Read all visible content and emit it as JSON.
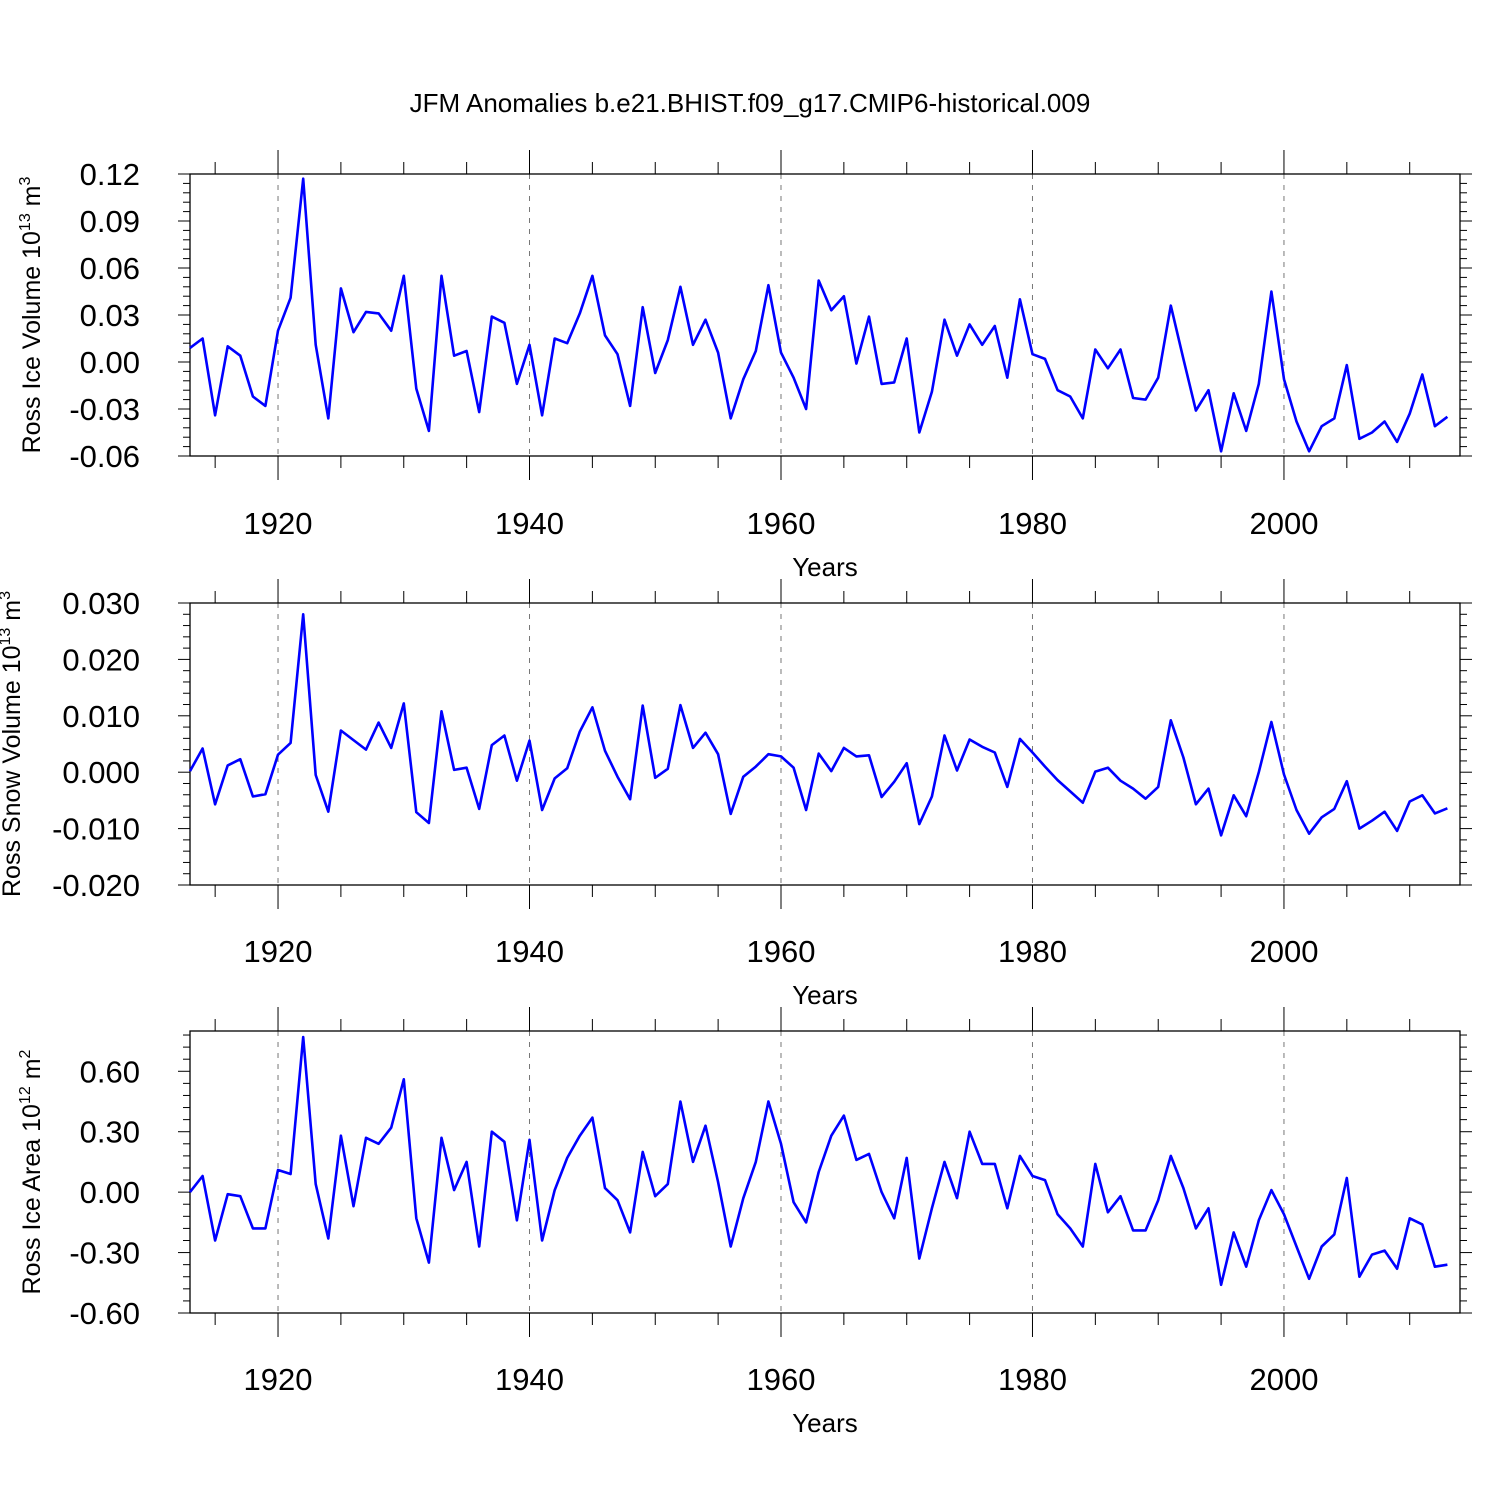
{
  "title": "JFM Anomalies b.e21.BHIST.f09_g17.CMIP6-historical.009",
  "colors": {
    "line": "#0000ff",
    "axis": "#000000",
    "grid": "#777777"
  },
  "chart_data": [
    {
      "type": "line",
      "ylabel": "Ross Ice Volume 10",
      "ylabel_exp": "13",
      "ylabel_unit": " m",
      "ylabel_unit_exp": "3",
      "xlabel": "Years",
      "xlim": [
        1913,
        2014
      ],
      "ylim": [
        -0.06,
        0.12
      ],
      "xticks": [
        1920,
        1940,
        1960,
        1980,
        2000
      ],
      "xtick_labels": [
        "1920",
        "1940",
        "1960",
        "1980",
        "2000"
      ],
      "yticks": [
        -0.06,
        -0.03,
        0.0,
        0.03,
        0.06,
        0.09,
        0.12
      ],
      "ytick_labels": [
        "-0.06",
        "-0.03",
        "0.00",
        "0.03",
        "0.06",
        "0.09",
        "0.12"
      ],
      "x_start": 1913,
      "values": [
        0.009,
        0.015,
        -0.034,
        0.01,
        0.004,
        -0.022,
        -0.028,
        0.02,
        0.041,
        0.117,
        0.011,
        -0.036,
        0.047,
        0.019,
        0.032,
        0.031,
        0.02,
        0.055,
        -0.017,
        -0.044,
        0.055,
        0.004,
        0.007,
        -0.032,
        0.029,
        0.025,
        -0.014,
        0.011,
        -0.034,
        0.015,
        0.012,
        0.031,
        0.055,
        0.017,
        0.005,
        -0.028,
        0.035,
        -0.007,
        0.014,
        0.048,
        0.011,
        0.027,
        0.006,
        -0.036,
        -0.011,
        0.007,
        0.049,
        0.006,
        -0.01,
        -0.03,
        0.052,
        0.033,
        0.042,
        -0.001,
        0.029,
        -0.014,
        -0.013,
        0.015,
        -0.045,
        -0.019,
        0.027,
        0.004,
        0.024,
        0.011,
        0.023,
        -0.01,
        0.04,
        0.005,
        0.002,
        -0.018,
        -0.022,
        -0.036,
        0.008,
        -0.004,
        0.008,
        -0.023,
        -0.024,
        -0.01,
        0.036,
        0.002,
        -0.031,
        -0.018,
        -0.057,
        -0.02,
        -0.044,
        -0.014,
        0.045,
        -0.011,
        -0.038,
        -0.057,
        -0.041,
        -0.036,
        -0.002,
        -0.049,
        -0.045,
        -0.038,
        -0.051,
        -0.033,
        -0.008,
        -0.041,
        -0.035
      ]
    },
    {
      "type": "line",
      "ylabel": "Ross Snow Volume 10",
      "ylabel_exp": "13",
      "ylabel_unit": " m",
      "ylabel_unit_exp": "3",
      "xlabel": "Years",
      "xlim": [
        1913,
        2014
      ],
      "ylim": [
        -0.02,
        0.03
      ],
      "xticks": [
        1920,
        1940,
        1960,
        1980,
        2000
      ],
      "xtick_labels": [
        "1920",
        "1940",
        "1960",
        "1980",
        "2000"
      ],
      "yticks": [
        -0.02,
        -0.01,
        0.0,
        0.01,
        0.02,
        0.03
      ],
      "ytick_labels": [
        "-0.020",
        "-0.010",
        "0.000",
        "0.010",
        "0.020",
        "0.030"
      ],
      "x_start": 1913,
      "values": [
        0.0002,
        0.0042,
        -0.0057,
        0.0012,
        0.0023,
        -0.0043,
        -0.0039,
        0.0031,
        0.0052,
        0.028,
        -0.0005,
        -0.007,
        0.0074,
        0.0057,
        0.004,
        0.0088,
        0.0043,
        0.0122,
        -0.0071,
        -0.009,
        0.0108,
        0.0004,
        0.0008,
        -0.0065,
        0.0048,
        0.0065,
        -0.0015,
        0.0056,
        -0.0067,
        -0.0011,
        0.0007,
        0.0072,
        0.0115,
        0.0038,
        -0.0008,
        -0.0048,
        0.0118,
        -0.001,
        0.0006,
        0.0119,
        0.0043,
        0.007,
        0.0032,
        -0.0074,
        -0.0008,
        0.001,
        0.0032,
        0.0028,
        0.0008,
        -0.0067,
        0.0033,
        0.0002,
        0.0043,
        0.0028,
        0.003,
        -0.0044,
        -0.0017,
        0.0016,
        -0.0092,
        -0.0043,
        0.0065,
        0.0003,
        0.0058,
        0.0045,
        0.0035,
        -0.0026,
        0.0059,
        0.0035,
        0.001,
        -0.0014,
        -0.0034,
        -0.0054,
        0.0001,
        0.0008,
        -0.0015,
        -0.0029,
        -0.0047,
        -0.0026,
        0.0092,
        0.0026,
        -0.0057,
        -0.0029,
        -0.0112,
        -0.0041,
        -0.0078,
        0.0,
        0.0089,
        -0.0004,
        -0.0067,
        -0.0109,
        -0.008,
        -0.0065,
        -0.0016,
        -0.01,
        -0.0086,
        -0.007,
        -0.0104,
        -0.0052,
        -0.0041,
        -0.0073,
        -0.0064
      ]
    },
    {
      "type": "line",
      "ylabel": "Ross Ice Area 10",
      "ylabel_exp": "12",
      "ylabel_unit": " m",
      "ylabel_unit_exp": "2",
      "xlabel": "Years",
      "xlim": [
        1913,
        2014
      ],
      "ylim": [
        -0.6,
        0.8
      ],
      "xticks": [
        1920,
        1940,
        1960,
        1980,
        2000
      ],
      "xtick_labels": [
        "1920",
        "1940",
        "1960",
        "1980",
        "2000"
      ],
      "yticks": [
        -0.6,
        -0.3,
        0.0,
        0.3,
        0.6
      ],
      "ytick_labels": [
        "-0.60",
        "-0.30",
        "0.00",
        "0.30",
        "0.60"
      ],
      "x_start": 1913,
      "values": [
        0.0,
        0.08,
        -0.24,
        -0.01,
        -0.02,
        -0.18,
        -0.18,
        0.11,
        0.09,
        0.77,
        0.04,
        -0.23,
        0.28,
        -0.07,
        0.27,
        0.24,
        0.32,
        0.56,
        -0.13,
        -0.35,
        0.27,
        0.01,
        0.15,
        -0.27,
        0.3,
        0.25,
        -0.14,
        0.26,
        -0.24,
        0.01,
        0.17,
        0.28,
        0.37,
        0.02,
        -0.04,
        -0.2,
        0.2,
        -0.02,
        0.04,
        0.45,
        0.15,
        0.33,
        0.05,
        -0.27,
        -0.03,
        0.15,
        0.45,
        0.24,
        -0.05,
        -0.15,
        0.1,
        0.28,
        0.38,
        0.16,
        0.19,
        0.0,
        -0.13,
        0.17,
        -0.33,
        -0.08,
        0.15,
        -0.03,
        0.3,
        0.14,
        0.14,
        -0.08,
        0.18,
        0.08,
        0.06,
        -0.11,
        -0.18,
        -0.27,
        0.14,
        -0.1,
        -0.02,
        -0.19,
        -0.19,
        -0.04,
        0.18,
        0.02,
        -0.18,
        -0.08,
        -0.46,
        -0.2,
        -0.37,
        -0.14,
        0.01,
        -0.11,
        -0.27,
        -0.43,
        -0.27,
        -0.21,
        0.07,
        -0.42,
        -0.31,
        -0.29,
        -0.38,
        -0.13,
        -0.16,
        -0.37,
        -0.36
      ]
    }
  ]
}
